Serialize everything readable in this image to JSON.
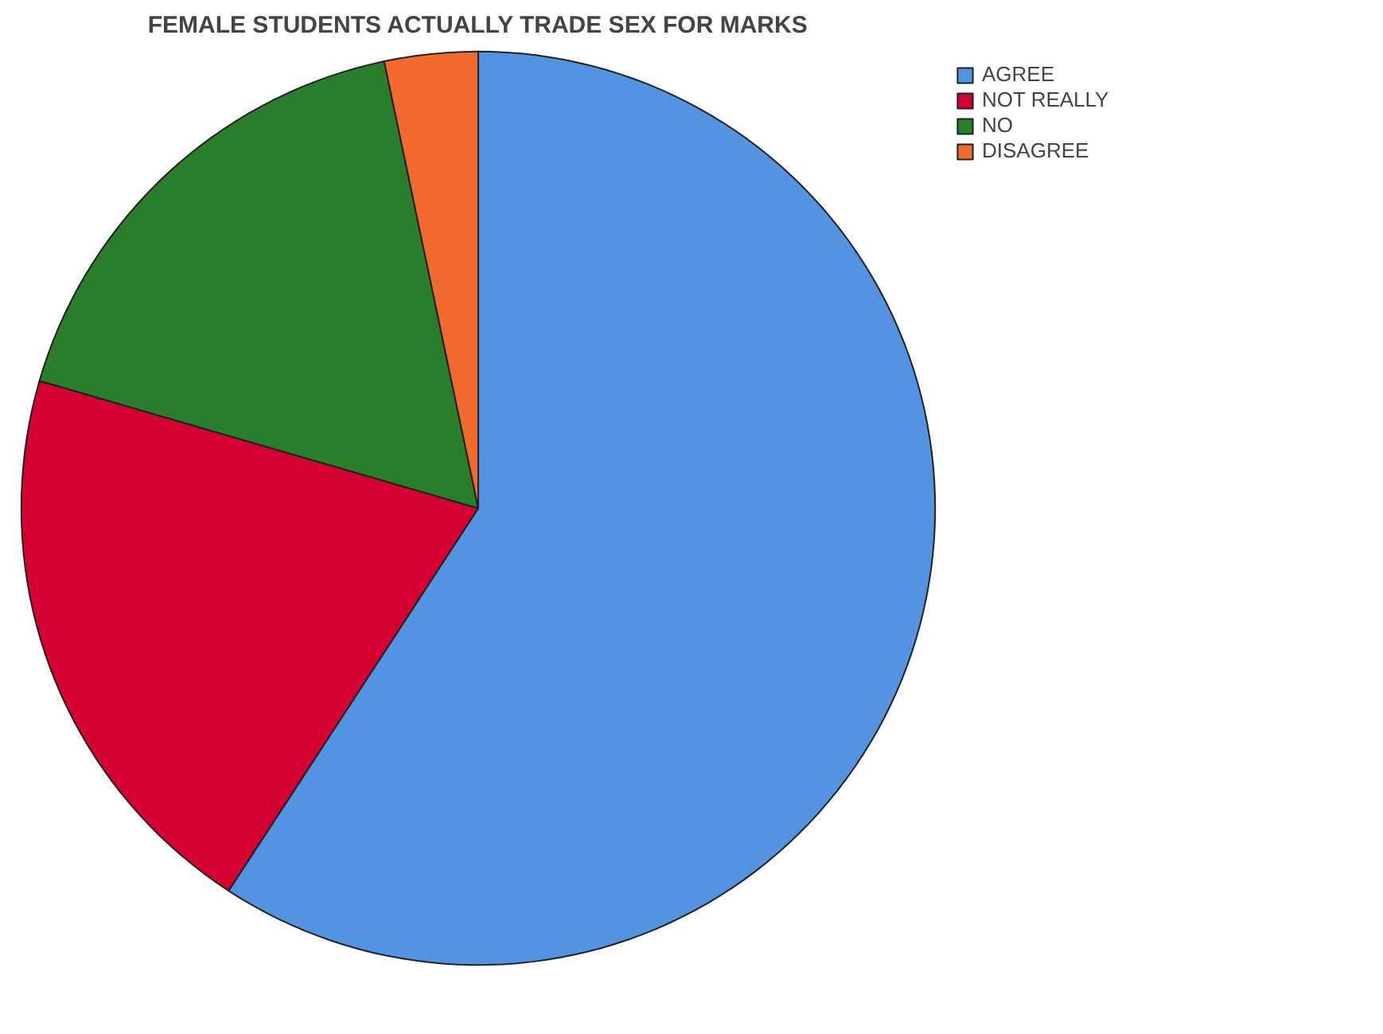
{
  "chart_data": {
    "type": "pie",
    "title": "FEMALE STUDENTS ACTUALLY TRADE SEX FOR MARKS",
    "categories": [
      "AGREE",
      "NOT REALLY",
      "NO",
      "DISAGREE"
    ],
    "values": [
      59.2,
      20.3,
      17.2,
      3.3
    ],
    "colors": [
      "#5294e2",
      "#d50032",
      "#2a7d2a",
      "#f26a2d"
    ],
    "legend": "top right"
  }
}
